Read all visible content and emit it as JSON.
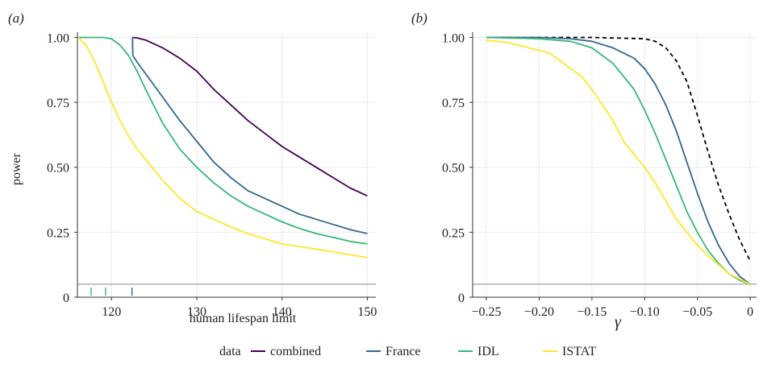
{
  "chart_data": [
    {
      "panel_label": "(a)",
      "type": "line",
      "xlabel": "human lifespan limit",
      "ylabel": "power",
      "xlim": [
        116,
        151
      ],
      "ylim": [
        0,
        1.02
      ],
      "xticks": [
        "120",
        "130",
        "140",
        "150"
      ],
      "yticks": [
        "0",
        "0.25",
        "0.50",
        "0.75",
        "1.00"
      ],
      "hline": 0.05,
      "rug": [
        {
          "x": 117.6,
          "color": "#35b779"
        },
        {
          "x": 119.3,
          "color": "#35b779"
        },
        {
          "x": 122.4,
          "color": "#31688e"
        }
      ],
      "series": [
        {
          "name": "combined",
          "color": "#440154",
          "x": [
            122.45,
            123,
            124,
            126,
            128,
            130,
            132,
            134,
            136,
            138,
            140,
            142,
            144,
            146,
            148,
            150
          ],
          "y": [
            1.0,
            0.998,
            0.99,
            0.96,
            0.92,
            0.87,
            0.8,
            0.74,
            0.68,
            0.63,
            0.58,
            0.54,
            0.5,
            0.46,
            0.42,
            0.39
          ]
        },
        {
          "name": "France",
          "color": "#31688e",
          "x": [
            122.45,
            122.5,
            123,
            124,
            126,
            128,
            130,
            132,
            134,
            136,
            138,
            140,
            142,
            144,
            146,
            148,
            150
          ],
          "y": [
            1.0,
            0.93,
            0.905,
            0.86,
            0.77,
            0.68,
            0.6,
            0.52,
            0.46,
            0.41,
            0.38,
            0.35,
            0.32,
            0.3,
            0.28,
            0.26,
            0.245
          ]
        },
        {
          "name": "IDL",
          "color": "#35b779",
          "x": [
            116.1,
            118,
            119,
            120,
            121,
            122,
            123,
            124,
            126,
            128,
            130,
            132,
            134,
            136,
            138,
            140,
            142,
            144,
            146,
            148,
            150
          ],
          "y": [
            1.0,
            1.0,
            1.0,
            0.995,
            0.97,
            0.93,
            0.87,
            0.8,
            0.67,
            0.57,
            0.5,
            0.44,
            0.39,
            0.35,
            0.32,
            0.29,
            0.265,
            0.245,
            0.23,
            0.215,
            0.205
          ]
        },
        {
          "name": "ISTAT",
          "color": "#fde725",
          "x": [
            116.1,
            117,
            118,
            119,
            120,
            121,
            122,
            123,
            124,
            126,
            128,
            130,
            132,
            134,
            136,
            138,
            140,
            142,
            144,
            146,
            148,
            150
          ],
          "y": [
            1.0,
            0.97,
            0.91,
            0.83,
            0.75,
            0.68,
            0.62,
            0.57,
            0.53,
            0.45,
            0.38,
            0.33,
            0.3,
            0.27,
            0.245,
            0.225,
            0.205,
            0.195,
            0.185,
            0.175,
            0.163,
            0.153
          ]
        }
      ]
    },
    {
      "panel_label": "(b)",
      "type": "line",
      "xlabel": "γ",
      "ylabel": "",
      "xlim": [
        -0.263,
        0.006
      ],
      "ylim": [
        0,
        1.02
      ],
      "xticks": [
        "−0.25",
        "−0.20",
        "−0.15",
        "−0.10",
        "−0.05",
        "0"
      ],
      "yticks": [
        "0",
        "0.25",
        "0.50",
        "0.75",
        "1.00"
      ],
      "hline": 0.05,
      "series": [
        {
          "name": "",
          "color": "#000000",
          "dashed": true,
          "x": [
            -0.25,
            -0.2,
            -0.15,
            -0.1,
            -0.09,
            -0.08,
            -0.07,
            -0.06,
            -0.05,
            -0.04,
            -0.03,
            -0.02,
            -0.01,
            0
          ],
          "y": [
            1.0,
            1.0,
            1.0,
            0.995,
            0.985,
            0.96,
            0.91,
            0.83,
            0.7,
            0.56,
            0.43,
            0.32,
            0.22,
            0.14
          ]
        },
        {
          "name": "France",
          "color": "#31688e",
          "x": [
            -0.25,
            -0.2,
            -0.17,
            -0.15,
            -0.13,
            -0.11,
            -0.1,
            -0.09,
            -0.08,
            -0.07,
            -0.06,
            -0.05,
            -0.04,
            -0.03,
            -0.02,
            -0.01,
            0
          ],
          "y": [
            1.0,
            1.0,
            0.995,
            0.985,
            0.96,
            0.92,
            0.88,
            0.82,
            0.74,
            0.64,
            0.52,
            0.4,
            0.29,
            0.2,
            0.13,
            0.08,
            0.05
          ]
        },
        {
          "name": "IDL",
          "color": "#35b779",
          "x": [
            -0.25,
            -0.2,
            -0.17,
            -0.15,
            -0.13,
            -0.11,
            -0.1,
            -0.09,
            -0.08,
            -0.07,
            -0.06,
            -0.05,
            -0.04,
            -0.03,
            -0.02,
            -0.01,
            0
          ],
          "y": [
            1.0,
            0.995,
            0.985,
            0.96,
            0.9,
            0.8,
            0.72,
            0.63,
            0.53,
            0.43,
            0.33,
            0.25,
            0.18,
            0.13,
            0.09,
            0.065,
            0.05
          ]
        },
        {
          "name": "ISTAT",
          "color": "#fde725",
          "x": [
            -0.25,
            -0.23,
            -0.21,
            -0.19,
            -0.18,
            -0.17,
            -0.16,
            -0.15,
            -0.14,
            -0.13,
            -0.12,
            -0.11,
            -0.1,
            -0.09,
            -0.08,
            -0.07,
            -0.06,
            -0.05,
            -0.04,
            -0.03,
            -0.02,
            -0.01,
            0
          ],
          "y": [
            0.99,
            0.98,
            0.96,
            0.94,
            0.91,
            0.88,
            0.85,
            0.8,
            0.74,
            0.68,
            0.6,
            0.55,
            0.5,
            0.44,
            0.37,
            0.3,
            0.25,
            0.2,
            0.16,
            0.125,
            0.09,
            0.07,
            0.05
          ]
        }
      ]
    }
  ],
  "legend": {
    "title": "data",
    "items": [
      {
        "label": "combined",
        "color": "#440154"
      },
      {
        "label": "France",
        "color": "#31688e"
      },
      {
        "label": "IDL",
        "color": "#35b779"
      },
      {
        "label": "ISTAT",
        "color": "#fde725"
      }
    ]
  }
}
